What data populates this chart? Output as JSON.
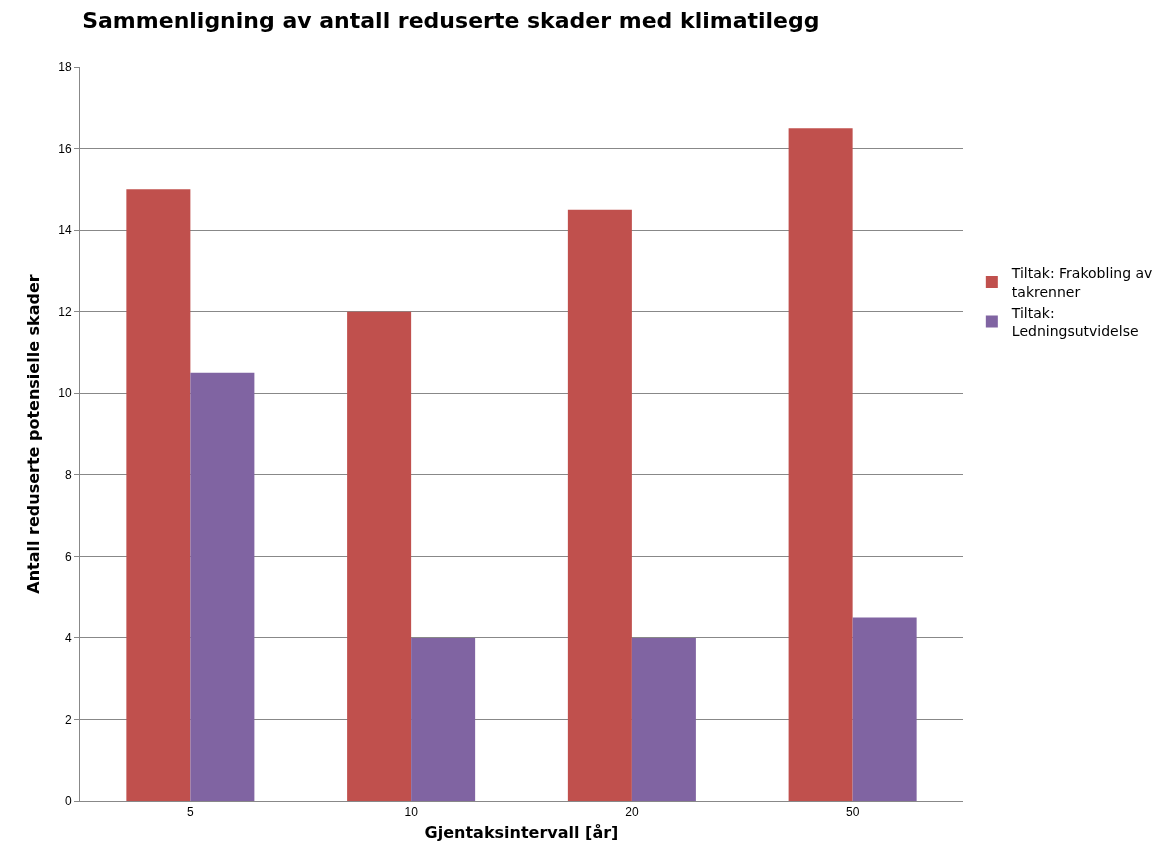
{
  "chart_data": {
    "type": "bar",
    "title": "Sammenligning av antall reduserte skader med klimatilegg",
    "xlabel": "Gjentaksintervall [år]",
    "ylabel": "Antall reduserte potensielle skader",
    "categories": [
      "5",
      "10",
      "20",
      "50"
    ],
    "series": [
      {
        "name": "Tiltak: Frakobling av takrenner",
        "color": "#c0504d",
        "values": [
          15,
          12,
          14.5,
          16.5
        ]
      },
      {
        "name": "Tiltak: Ledningsutvidelse",
        "color": "#8064a2",
        "values": [
          10.5,
          4,
          4,
          4.5
        ]
      }
    ],
    "ylim": [
      0,
      18
    ],
    "yticks": [
      0,
      2,
      4,
      6,
      8,
      10,
      12,
      14,
      16,
      18
    ],
    "grid": "y",
    "legend": "right"
  }
}
